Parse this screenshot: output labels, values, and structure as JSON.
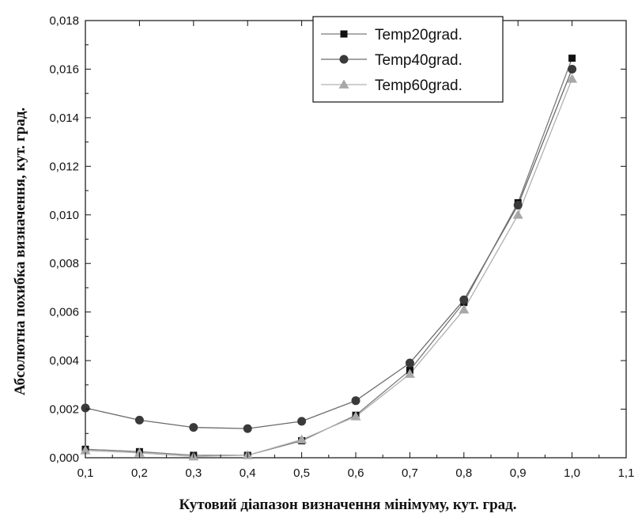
{
  "chart_data": {
    "type": "line",
    "xlabel": "Кутовий діапазон визначення мінімуму, кут. град.",
    "ylabel": "Абсолютна похибка визначення, кут. град.",
    "xlim": [
      0.1,
      1.1
    ],
    "ylim": [
      0,
      0.018
    ],
    "x_ticks": [
      "0,1",
      "0,2",
      "0,3",
      "0,4",
      "0,5",
      "0,6",
      "0,7",
      "0,8",
      "0,9",
      "1,0",
      "1,1"
    ],
    "y_ticks": [
      "0,000",
      "0,002",
      "0,004",
      "0,006",
      "0,008",
      "0,010",
      "0,012",
      "0,014",
      "0,016",
      "0,018"
    ],
    "x": [
      0.1,
      0.2,
      0.3,
      0.4,
      0.5,
      0.6,
      0.7,
      0.8,
      0.9,
      1.0
    ],
    "series": [
      {
        "name": "Temp20grad.",
        "marker": "square",
        "color": "#111111",
        "line_color": "#7a7a7a",
        "values": [
          0.00035,
          0.00025,
          0.0001,
          0.0001,
          0.0007,
          0.00175,
          0.0036,
          0.0064,
          0.0105,
          0.01645
        ]
      },
      {
        "name": "Temp40grad.",
        "marker": "circle",
        "color": "#3a3a3a",
        "line_color": "#6a6a6a",
        "values": [
          0.00205,
          0.00155,
          0.00125,
          0.0012,
          0.0015,
          0.00235,
          0.0039,
          0.0065,
          0.0104,
          0.016
        ]
      },
      {
        "name": "Temp60grad.",
        "marker": "triangle",
        "color": "#a8a8a8",
        "line_color": "#b0b0b0",
        "values": [
          0.0003,
          0.0002,
          5e-05,
          0.0001,
          0.00075,
          0.0017,
          0.00345,
          0.0061,
          0.01,
          0.0156
        ]
      }
    ],
    "legend_position": "top-right"
  }
}
